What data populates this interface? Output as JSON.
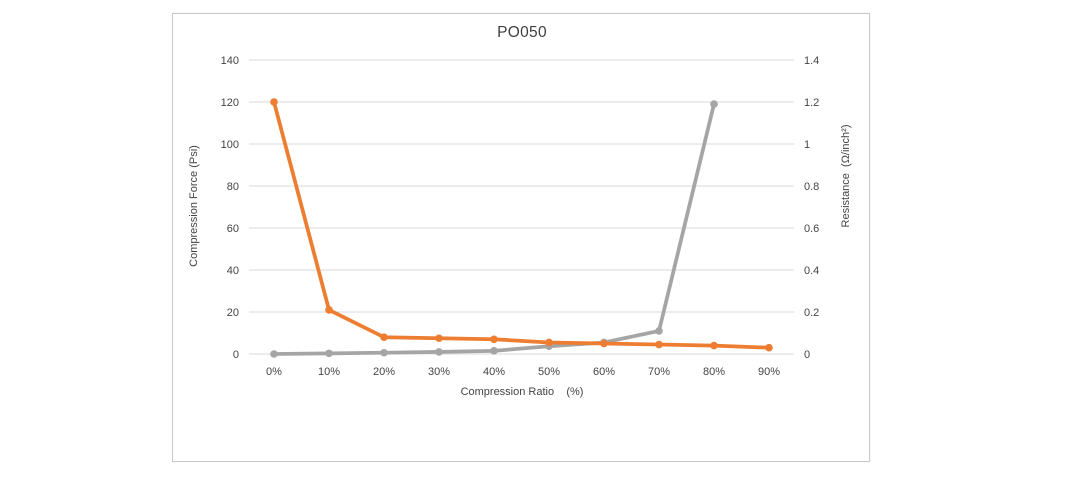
{
  "chart_data": {
    "type": "line",
    "title": "PO050",
    "xlabel": "Compression Ratio    (%)",
    "x_categories": [
      "0%",
      "10%",
      "20%",
      "30%",
      "40%",
      "50%",
      "60%",
      "70%",
      "80%",
      "90%"
    ],
    "left_axis": {
      "label": "Compression Force (Psi)",
      "ticks": [
        0,
        20,
        40,
        60,
        80,
        100,
        120,
        140
      ],
      "range": [
        0,
        140
      ]
    },
    "right_axis": {
      "label": "Resistance  (Ω/inch²)",
      "ticks": [
        0,
        0.2,
        0.4,
        0.6,
        0.8,
        1,
        1.2,
        1.4
      ],
      "range": [
        0,
        1.4
      ]
    },
    "series": [
      {
        "key": "compression-force",
        "name": "Compression Force",
        "axis": "left",
        "color": "#A5A5A5",
        "values": [
          0,
          0.3,
          0.6,
          1,
          1.5,
          3.7,
          5.5,
          11,
          119
        ]
      },
      {
        "key": "resistance",
        "name": "Resistance",
        "axis": "right",
        "color": "#ED7D31",
        "values": [
          1.2,
          0.21,
          0.08,
          0.075,
          0.07,
          0.055,
          0.05,
          0.045,
          0.04,
          0.03
        ]
      }
    ],
    "grid": true,
    "legend": false,
    "grid_color": "#d9d9d9"
  },
  "colors": {
    "background": "#ffffff",
    "card_border": "#c9c9c9",
    "text": "#444444",
    "series_orange": "#ED7D31",
    "series_gray": "#A5A5A5"
  }
}
